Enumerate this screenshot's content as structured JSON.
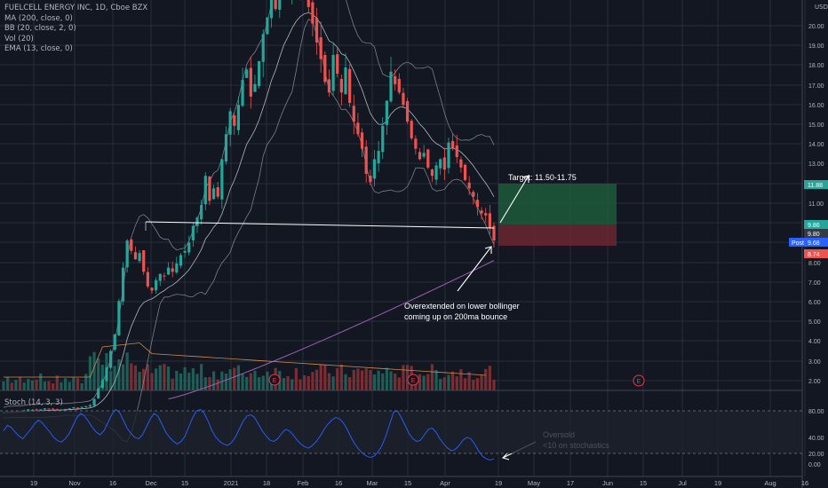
{
  "header": {
    "symbol_line": "FUELCELL ENERGY INC, 1D, Cboe BZX",
    "indicators": [
      "MA (200, close, 0)",
      "BB (20, close, 2, 0)",
      "Vol (20)",
      "EMA (13, close, 0)"
    ],
    "currency": "USD"
  },
  "stoch": {
    "label": "Stoch (14, 3, 3)",
    "ticks": [
      "80.00",
      "40.00",
      "20.00",
      "0.00"
    ],
    "values": [
      50,
      58,
      55,
      48,
      42,
      38,
      45,
      52,
      60,
      66,
      62,
      55,
      48,
      40,
      35,
      33,
      38,
      46,
      58,
      70,
      76,
      72,
      64,
      55,
      48,
      44,
      50,
      62,
      74,
      82,
      78,
      66,
      54,
      46,
      40,
      38,
      44,
      56,
      68,
      76,
      72,
      60,
      48,
      40,
      34,
      30,
      34,
      42,
      56,
      70,
      80,
      82,
      76,
      64,
      50,
      40,
      34,
      30,
      28,
      32,
      40,
      52,
      64,
      72,
      74,
      70,
      60,
      50,
      42,
      36,
      34,
      38,
      46,
      52,
      50,
      44,
      36,
      30,
      26,
      24,
      28,
      34,
      42,
      52,
      60,
      66,
      70,
      68,
      62,
      52,
      40,
      30,
      22,
      16,
      12,
      10,
      12,
      18,
      28,
      42,
      60,
      78,
      80,
      70,
      58,
      46,
      38,
      34,
      36,
      44,
      52,
      54,
      48,
      38,
      30,
      24,
      20,
      22,
      28,
      36,
      40,
      38,
      30,
      20,
      12,
      8,
      6,
      8
    ]
  },
  "price_axis": [
    "20.00",
    "19.00",
    "18.00",
    "17.00",
    "16.00",
    "15.00",
    "14.00",
    "13.00",
    "12.00",
    "11.00",
    "10.00",
    "9.00",
    "8.00",
    "7.00",
    "6.00",
    "5.00",
    "4.00",
    "3.00",
    "2.00"
  ],
  "price_tags": [
    {
      "label": "11.88",
      "price": 11.88,
      "color": "#26a69a"
    },
    {
      "label": "9.86",
      "price": 9.86,
      "color": "#26a69a"
    },
    {
      "label": "9.80",
      "price": 9.8,
      "color": "#363a45"
    },
    {
      "label": "Post",
      "price": 9.68,
      "color": "#2962ff"
    },
    {
      "label": "9.68",
      "price": 9.68,
      "color": "#2962ff"
    },
    {
      "label": "8.74",
      "price": 8.74,
      "color": "#ef5350"
    }
  ],
  "time_axis": [
    "19",
    "Nov",
    "16",
    "Dec",
    "15",
    "2021",
    "18",
    "Feb",
    "16",
    "Mar",
    "15",
    "Apr",
    "19",
    "May",
    "17",
    "Jun",
    "15",
    "Jul",
    "19",
    "Aug",
    "16"
  ],
  "annotations": {
    "target": "Target: 11.50-11.75",
    "bounce_line1": "Overextended on lower bollinger",
    "bounce_line2": "coming up on 200ma bounce",
    "oversold_line1": "Oversold",
    "oversold_line2": "<10 on stochastics"
  },
  "earnings_marker": "E",
  "colors": {
    "up": "#26a69a",
    "down": "#ef5350",
    "background": "#131722",
    "ma200": "#9c5fb5",
    "vol_ma": "#d08b4c",
    "stoch": "#2962ff",
    "target_box": "#1f5a3a",
    "stop_box": "#6b2731"
  },
  "chart_data": {
    "type": "candlestick",
    "title": "FUELCELL ENERGY INC, 1D, Cboe BZX",
    "xlabel": "",
    "ylabel": "",
    "ylim": [
      1.3,
      23
    ],
    "grid": true,
    "closes": [
      1.45,
      1.5,
      1.48,
      1.52,
      1.5,
      1.55,
      1.6,
      1.58,
      1.55,
      1.6,
      1.65,
      1.62,
      1.6,
      1.58,
      1.6,
      1.62,
      1.65,
      1.7,
      1.68,
      1.72,
      1.75,
      1.8,
      2.1,
      2.6,
      3.0,
      3.6,
      4.4,
      5.2,
      6.8,
      8.4,
      9.7,
      9.2,
      8.8,
      9.1,
      8.2,
      7.5,
      7.3,
      7.8,
      8.1,
      8.0,
      8.4,
      8.2,
      8.6,
      9.0,
      9.2,
      9.6,
      10.4,
      10.8,
      11.4,
      12.8,
      11.6,
      12.2,
      11.8,
      13.6,
      14.8,
      15.9,
      15.2,
      16.2,
      17.4,
      17.9,
      16.6,
      17.2,
      18.3,
      19.6,
      20.4,
      21.5,
      20.8,
      22.2,
      22.6,
      21.8,
      22.4,
      22.2,
      21.8,
      21.4,
      20.9,
      20.1,
      19.2,
      18.4,
      17.3,
      16.8,
      18.6,
      17.7,
      16.8,
      18.0,
      16.3,
      15.4,
      14.8,
      14.1,
      12.9,
      12.5,
      13.6,
      14.0,
      15.2,
      16.4,
      17.8,
      17.2,
      16.8,
      16.2,
      15.4,
      14.6,
      14.1,
      13.6,
      13.9,
      13.2,
      12.8,
      13.3,
      13.6,
      13.1,
      14.4,
      14.1,
      13.7,
      13.2,
      12.6,
      12.2,
      11.8,
      11.3,
      11.0,
      10.9,
      10.3,
      9.7
    ],
    "dates_range": [
      "Oct 2020",
      "Apr 2021"
    ],
    "last_price": 9.68
  }
}
